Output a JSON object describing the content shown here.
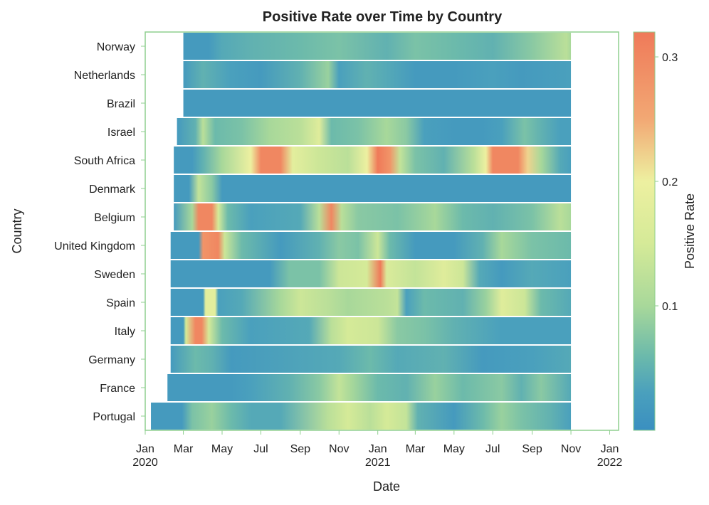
{
  "chart_data": {
    "type": "heatmap",
    "title": "Positive Rate over Time by Country",
    "xlabel": "Date",
    "ylabel": "Country",
    "colorbar_label": "Positive Rate",
    "countries": [
      "Norway",
      "Netherlands",
      "Brazil",
      "Israel",
      "South Africa",
      "Denmark",
      "Belgium",
      "United Kingdom",
      "Sweden",
      "Spain",
      "Italy",
      "Germany",
      "France",
      "Portugal"
    ],
    "xlim": [
      "2020-01-01",
      "2022-01-15"
    ],
    "x_ticks": [
      {
        "date": "2020-01-01",
        "label": "Jan",
        "year": "2020"
      },
      {
        "date": "2020-03-01",
        "label": "Mar",
        "year": ""
      },
      {
        "date": "2020-05-01",
        "label": "May",
        "year": ""
      },
      {
        "date": "2020-07-01",
        "label": "Jul",
        "year": ""
      },
      {
        "date": "2020-09-01",
        "label": "Sep",
        "year": ""
      },
      {
        "date": "2020-11-01",
        "label": "Nov",
        "year": ""
      },
      {
        "date": "2021-01-01",
        "label": "Jan",
        "year": "2021"
      },
      {
        "date": "2021-03-01",
        "label": "Mar",
        "year": ""
      },
      {
        "date": "2021-05-01",
        "label": "May",
        "year": ""
      },
      {
        "date": "2021-07-01",
        "label": "Jul",
        "year": ""
      },
      {
        "date": "2021-09-01",
        "label": "Sep",
        "year": ""
      },
      {
        "date": "2021-11-01",
        "label": "Nov",
        "year": ""
      },
      {
        "date": "2022-01-01",
        "label": "Jan",
        "year": "2022"
      }
    ],
    "colorbar": {
      "range": [
        0,
        0.32
      ],
      "ticks": [
        0.1,
        0.2,
        0.3
      ],
      "tick_labels": [
        "0.1",
        "0.2",
        "0.3"
      ],
      "stops": [
        {
          "value": 0.0,
          "color": "#3a8fc0"
        },
        {
          "value": 0.03,
          "color": "#4aa0bd"
        },
        {
          "value": 0.06,
          "color": "#6cbaab"
        },
        {
          "value": 0.1,
          "color": "#a8d89a"
        },
        {
          "value": 0.15,
          "color": "#d5ea98"
        },
        {
          "value": 0.2,
          "color": "#edf0a0"
        },
        {
          "value": 0.25,
          "color": "#f2a874"
        },
        {
          "value": 0.32,
          "color": "#ef7a59"
        }
      ]
    },
    "series": [
      {
        "name": "Norway",
        "start": "2020-03-01",
        "end": "2021-11-01",
        "points": [
          [
            "2020-03-01",
            0.02
          ],
          [
            "2020-04-10",
            0.02
          ],
          [
            "2020-05-01",
            0.04
          ],
          [
            "2020-06-15",
            0.05
          ],
          [
            "2020-09-01",
            0.06
          ],
          [
            "2020-11-01",
            0.07
          ],
          [
            "2021-01-15",
            0.05
          ],
          [
            "2021-03-01",
            0.07
          ],
          [
            "2021-05-01",
            0.06
          ],
          [
            "2021-07-01",
            0.05
          ],
          [
            "2021-09-01",
            0.08
          ],
          [
            "2021-10-25",
            0.12
          ],
          [
            "2021-11-01",
            0.1
          ]
        ]
      },
      {
        "name": "Netherlands",
        "start": "2020-03-01",
        "end": "2021-11-01",
        "points": [
          [
            "2020-03-01",
            0.02
          ],
          [
            "2020-04-01",
            0.05
          ],
          [
            "2020-05-15",
            0.03
          ],
          [
            "2020-07-01",
            0.02
          ],
          [
            "2020-09-01",
            0.05
          ],
          [
            "2020-10-15",
            0.09
          ],
          [
            "2020-11-01",
            0.03
          ],
          [
            "2020-12-15",
            0.05
          ],
          [
            "2021-01-15",
            0.04
          ],
          [
            "2021-03-01",
            0.02
          ],
          [
            "2021-05-01",
            0.02
          ],
          [
            "2021-07-01",
            0.03
          ],
          [
            "2021-08-15",
            0.02
          ],
          [
            "2021-11-01",
            0.03
          ]
        ]
      },
      {
        "name": "Brazil",
        "start": "2020-03-01",
        "end": "2021-11-01",
        "points": [
          [
            "2020-03-01",
            0.02
          ],
          [
            "2021-11-01",
            0.02
          ]
        ]
      },
      {
        "name": "Israel",
        "start": "2020-02-20",
        "end": "2021-11-01",
        "points": [
          [
            "2020-02-20",
            0.02
          ],
          [
            "2020-03-20",
            0.05
          ],
          [
            "2020-04-01",
            0.12
          ],
          [
            "2020-04-20",
            0.06
          ],
          [
            "2020-06-01",
            0.07
          ],
          [
            "2020-07-15",
            0.1
          ],
          [
            "2020-09-01",
            0.12
          ],
          [
            "2020-10-01",
            0.17
          ],
          [
            "2020-10-20",
            0.06
          ],
          [
            "2020-12-01",
            0.07
          ],
          [
            "2021-01-15",
            0.1
          ],
          [
            "2021-02-15",
            0.08
          ],
          [
            "2021-03-15",
            0.03
          ],
          [
            "2021-05-01",
            0.02
          ],
          [
            "2021-06-15",
            0.02
          ],
          [
            "2021-07-15",
            0.03
          ],
          [
            "2021-08-20",
            0.07
          ],
          [
            "2021-09-15",
            0.05
          ],
          [
            "2021-10-15",
            0.03
          ],
          [
            "2021-11-01",
            0.03
          ]
        ]
      },
      {
        "name": "South Africa",
        "start": "2020-02-15",
        "end": "2021-11-01",
        "points": [
          [
            "2020-02-15",
            0.02
          ],
          [
            "2020-03-15",
            0.02
          ],
          [
            "2020-04-01",
            0.05
          ],
          [
            "2020-05-01",
            0.1
          ],
          [
            "2020-06-15",
            0.2
          ],
          [
            "2020-07-01",
            0.3
          ],
          [
            "2020-08-01",
            0.3
          ],
          [
            "2020-08-20",
            0.18
          ],
          [
            "2020-10-01",
            0.14
          ],
          [
            "2020-11-15",
            0.12
          ],
          [
            "2020-12-15",
            0.2
          ],
          [
            "2021-01-01",
            0.32
          ],
          [
            "2021-01-20",
            0.28
          ],
          [
            "2021-02-05",
            0.13
          ],
          [
            "2021-03-01",
            0.07
          ],
          [
            "2021-04-15",
            0.05
          ],
          [
            "2021-06-01",
            0.12
          ],
          [
            "2021-06-20",
            0.2
          ],
          [
            "2021-07-01",
            0.3
          ],
          [
            "2021-08-10",
            0.3
          ],
          [
            "2021-08-25",
            0.22
          ],
          [
            "2021-09-15",
            0.1
          ],
          [
            "2021-10-15",
            0.04
          ],
          [
            "2021-11-01",
            0.03
          ]
        ]
      },
      {
        "name": "Denmark",
        "start": "2020-02-15",
        "end": "2021-11-01",
        "points": [
          [
            "2020-02-15",
            0.02
          ],
          [
            "2020-03-10",
            0.02
          ],
          [
            "2020-03-25",
            0.13
          ],
          [
            "2020-04-15",
            0.08
          ],
          [
            "2020-05-01",
            0.02
          ],
          [
            "2021-11-01",
            0.02
          ]
        ]
      },
      {
        "name": "Belgium",
        "start": "2020-02-15",
        "end": "2021-11-01",
        "points": [
          [
            "2020-02-15",
            0.02
          ],
          [
            "2020-03-15",
            0.1
          ],
          [
            "2020-03-25",
            0.3
          ],
          [
            "2020-04-15",
            0.3
          ],
          [
            "2020-04-25",
            0.15
          ],
          [
            "2020-05-10",
            0.06
          ],
          [
            "2020-06-15",
            0.03
          ],
          [
            "2020-09-01",
            0.04
          ],
          [
            "2020-10-01",
            0.12
          ],
          [
            "2020-10-20",
            0.3
          ],
          [
            "2020-11-05",
            0.12
          ],
          [
            "2020-12-01",
            0.08
          ],
          [
            "2021-02-01",
            0.07
          ],
          [
            "2021-04-01",
            0.1
          ],
          [
            "2021-05-15",
            0.06
          ],
          [
            "2021-07-01",
            0.05
          ],
          [
            "2021-09-01",
            0.07
          ],
          [
            "2021-10-15",
            0.12
          ],
          [
            "2021-11-01",
            0.1
          ]
        ]
      },
      {
        "name": "United Kingdom",
        "start": "2020-02-10",
        "end": "2021-11-01",
        "points": [
          [
            "2020-02-10",
            0.02
          ],
          [
            "2020-03-25",
            0.02
          ],
          [
            "2020-04-01",
            0.28
          ],
          [
            "2020-04-25",
            0.3
          ],
          [
            "2020-05-05",
            0.14
          ],
          [
            "2020-06-01",
            0.06
          ],
          [
            "2020-08-01",
            0.02
          ],
          [
            "2020-10-01",
            0.05
          ],
          [
            "2020-11-01",
            0.08
          ],
          [
            "2020-12-01",
            0.07
          ],
          [
            "2021-01-01",
            0.14
          ],
          [
            "2021-01-20",
            0.06
          ],
          [
            "2021-03-01",
            0.02
          ],
          [
            "2021-05-01",
            0.02
          ],
          [
            "2021-06-15",
            0.05
          ],
          [
            "2021-07-15",
            0.1
          ],
          [
            "2021-09-01",
            0.07
          ],
          [
            "2021-11-01",
            0.06
          ]
        ]
      },
      {
        "name": "Sweden",
        "start": "2020-02-10",
        "end": "2021-11-01",
        "points": [
          [
            "2020-02-10",
            0.02
          ],
          [
            "2020-07-15",
            0.02
          ],
          [
            "2020-08-15",
            0.07
          ],
          [
            "2020-10-01",
            0.07
          ],
          [
            "2020-11-01",
            0.14
          ],
          [
            "2020-12-15",
            0.15
          ],
          [
            "2021-01-05",
            0.32
          ],
          [
            "2021-01-15",
            0.16
          ],
          [
            "2021-03-01",
            0.13
          ],
          [
            "2021-04-15",
            0.17
          ],
          [
            "2021-05-15",
            0.14
          ],
          [
            "2021-06-10",
            0.04
          ],
          [
            "2021-07-15",
            0.02
          ],
          [
            "2021-09-01",
            0.04
          ],
          [
            "2021-11-01",
            0.03
          ]
        ]
      },
      {
        "name": "Spain",
        "start": "2020-02-10",
        "end": "2021-11-01",
        "points": [
          [
            "2020-02-10",
            0.02
          ],
          [
            "2020-04-01",
            0.02
          ],
          [
            "2020-04-05",
            0.18
          ],
          [
            "2020-04-20",
            0.18
          ],
          [
            "2020-04-25",
            0.03
          ],
          [
            "2020-06-01",
            0.04
          ],
          [
            "2020-08-01",
            0.1
          ],
          [
            "2020-09-01",
            0.14
          ],
          [
            "2020-10-15",
            0.12
          ],
          [
            "2020-11-15",
            0.1
          ],
          [
            "2021-01-15",
            0.12
          ],
          [
            "2021-02-01",
            0.13
          ],
          [
            "2021-02-15",
            0.03
          ],
          [
            "2021-03-15",
            0.06
          ],
          [
            "2021-05-15",
            0.05
          ],
          [
            "2021-06-20",
            0.09
          ],
          [
            "2021-07-15",
            0.17
          ],
          [
            "2021-08-20",
            0.14
          ],
          [
            "2021-09-15",
            0.06
          ],
          [
            "2021-11-01",
            0.04
          ]
        ]
      },
      {
        "name": "Italy",
        "start": "2020-02-10",
        "end": "2021-11-01",
        "points": [
          [
            "2020-02-10",
            0.02
          ],
          [
            "2020-03-01",
            0.02
          ],
          [
            "2020-03-05",
            0.15
          ],
          [
            "2020-03-20",
            0.3
          ],
          [
            "2020-03-30",
            0.3
          ],
          [
            "2020-04-10",
            0.15
          ],
          [
            "2020-05-01",
            0.06
          ],
          [
            "2020-06-15",
            0.03
          ],
          [
            "2020-09-15",
            0.04
          ],
          [
            "2020-10-20",
            0.12
          ],
          [
            "2020-11-15",
            0.15
          ],
          [
            "2021-01-01",
            0.14
          ],
          [
            "2021-02-01",
            0.08
          ],
          [
            "2021-03-15",
            0.07
          ],
          [
            "2021-05-01",
            0.05
          ],
          [
            "2021-07-15",
            0.03
          ],
          [
            "2021-11-01",
            0.03
          ]
        ]
      },
      {
        "name": "Germany",
        "start": "2020-02-10",
        "end": "2021-11-01",
        "points": [
          [
            "2020-02-10",
            0.02
          ],
          [
            "2020-03-20",
            0.06
          ],
          [
            "2020-04-15",
            0.05
          ],
          [
            "2020-05-15",
            0.02
          ],
          [
            "2020-11-01",
            0.04
          ],
          [
            "2020-12-20",
            0.06
          ],
          [
            "2021-02-01",
            0.04
          ],
          [
            "2021-04-15",
            0.05
          ],
          [
            "2021-06-15",
            0.02
          ],
          [
            "2021-09-01",
            0.03
          ],
          [
            "2021-11-01",
            0.04
          ]
        ]
      },
      {
        "name": "France",
        "start": "2020-02-05",
        "end": "2021-11-01",
        "points": [
          [
            "2020-02-05",
            0.02
          ],
          [
            "2020-05-15",
            0.02
          ],
          [
            "2020-06-15",
            0.03
          ],
          [
            "2020-08-15",
            0.05
          ],
          [
            "2020-10-01",
            0.08
          ],
          [
            "2020-11-01",
            0.13
          ],
          [
            "2020-11-20",
            0.1
          ],
          [
            "2021-01-01",
            0.06
          ],
          [
            "2021-02-15",
            0.05
          ],
          [
            "2021-04-01",
            0.09
          ],
          [
            "2021-05-15",
            0.06
          ],
          [
            "2021-07-15",
            0.08
          ],
          [
            "2021-08-15",
            0.05
          ],
          [
            "2021-09-15",
            0.08
          ],
          [
            "2021-11-01",
            0.04
          ]
        ]
      },
      {
        "name": "Portugal",
        "start": "2020-01-10",
        "end": "2021-11-01",
        "points": [
          [
            "2020-01-10",
            0.02
          ],
          [
            "2020-02-28",
            0.02
          ],
          [
            "2020-03-15",
            0.07
          ],
          [
            "2020-04-15",
            0.09
          ],
          [
            "2020-05-15",
            0.06
          ],
          [
            "2020-06-15",
            0.04
          ],
          [
            "2020-08-01",
            0.04
          ],
          [
            "2020-10-15",
            0.12
          ],
          [
            "2020-11-15",
            0.15
          ],
          [
            "2020-12-20",
            0.12
          ],
          [
            "2021-01-15",
            0.15
          ],
          [
            "2021-02-15",
            0.13
          ],
          [
            "2021-03-05",
            0.05
          ],
          [
            "2021-05-01",
            0.02
          ],
          [
            "2021-06-15",
            0.06
          ],
          [
            "2021-07-15",
            0.09
          ],
          [
            "2021-08-15",
            0.07
          ],
          [
            "2021-10-01",
            0.05
          ],
          [
            "2021-11-01",
            0.03
          ]
        ]
      }
    ]
  }
}
